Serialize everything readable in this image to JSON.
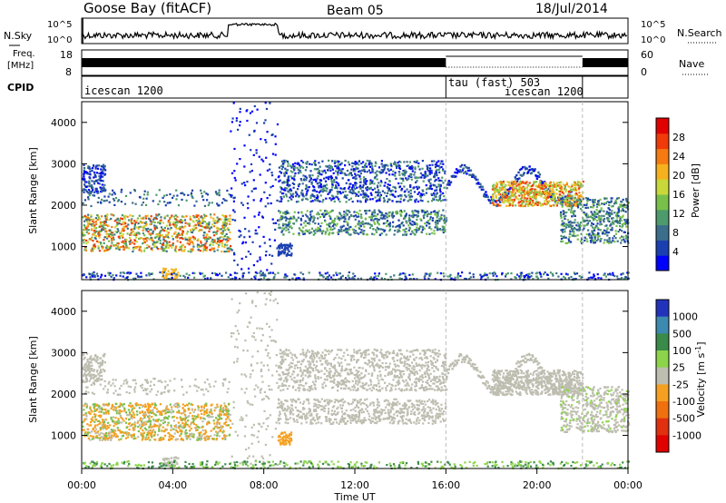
{
  "header": {
    "station": "Goose Bay (fitACF)",
    "beam": "Beam 05",
    "date": "18/Jul/2014"
  },
  "noise_panel": {
    "left_label": "N.Sky",
    "right_label": "N.Search",
    "y_ticks": [
      "10^5",
      "10^0"
    ]
  },
  "freq_panel": {
    "left_label_1": "Freq.",
    "left_label_2": "[MHz]",
    "left_ticks": [
      "18",
      "8"
    ],
    "right_label": "Nave",
    "right_ticks": [
      "60",
      "0"
    ]
  },
  "cpid_panel": {
    "label": "CPID",
    "segments": [
      {
        "label": "icescan 1200",
        "start": 0,
        "end": 16
      },
      {
        "label": "tau (fast) 503",
        "start": 16,
        "end": 22
      },
      {
        "label": "icescan 1200",
        "start": 16,
        "end": 22
      }
    ]
  },
  "time_axis": {
    "label": "Time UT",
    "ticks": [
      "00:00",
      "04:00",
      "08:00",
      "12:00",
      "16:00",
      "20:00",
      "00:00"
    ]
  },
  "colors": {
    "power": [
      "#0000ff",
      "#1a3fb0",
      "#3a6e8a",
      "#4d9a6c",
      "#78c04a",
      "#c8d83a",
      "#f5b21e",
      "#f57a12",
      "#f03a0a",
      "#e00000"
    ],
    "velocity": [
      "#2233bb",
      "#3c8ab0",
      "#3a8a4a",
      "#8cd44a",
      "#bdbdb0",
      "#f5a020",
      "#f07010",
      "#e03010",
      "#e00000"
    ]
  },
  "chart_data": [
    {
      "type": "heatmap",
      "name": "power",
      "ylabel": "Slant Range [km]",
      "xlabel": "Time UT",
      "xlim": [
        0,
        24
      ],
      "ylim": [
        200,
        4500
      ],
      "y_ticks": [
        1000,
        2000,
        3000,
        4000
      ],
      "colorbar_label": "Power [dB]",
      "colorbar_ticks": [
        "4",
        "8",
        "12",
        "16",
        "20",
        "24",
        "28"
      ],
      "colorbar_range": [
        0,
        30
      ]
    },
    {
      "type": "heatmap",
      "name": "velocity",
      "ylabel": "Slant Range [km]",
      "xlabel": "Time UT",
      "xlim": [
        0,
        24
      ],
      "ylim": [
        200,
        4500
      ],
      "y_ticks": [
        1000,
        2000,
        3000,
        4000
      ],
      "colorbar_label": "Velocity [m s^-1]",
      "colorbar_ticks": [
        "1000",
        "500",
        "100",
        "25",
        "-25",
        "-100",
        "-500",
        "-1000"
      ]
    }
  ]
}
